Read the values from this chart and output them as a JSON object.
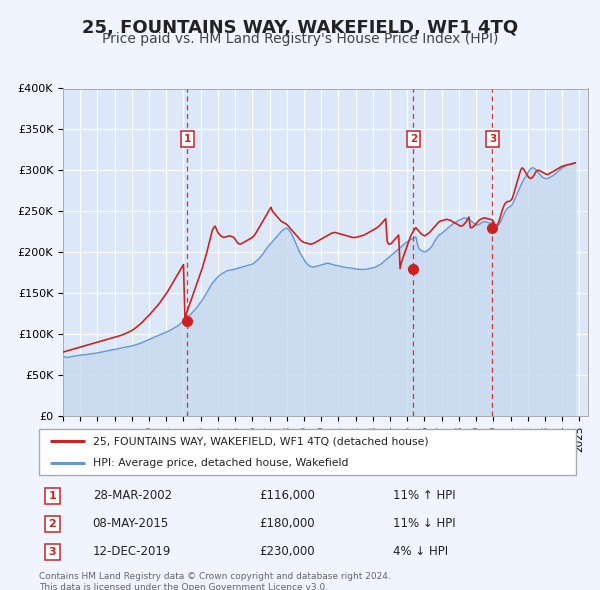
{
  "title": "25, FOUNTAINS WAY, WAKEFIELD, WF1 4TQ",
  "subtitle": "Price paid vs. HM Land Registry's House Price Index (HPI)",
  "ylim": [
    0,
    400000
  ],
  "yticks": [
    0,
    50000,
    100000,
    150000,
    200000,
    250000,
    300000,
    350000,
    400000
  ],
  "ytick_labels": [
    "£0",
    "£50K",
    "£100K",
    "£150K",
    "£200K",
    "£250K",
    "£300K",
    "£350K",
    "£400K"
  ],
  "xlim_start": 1995.0,
  "xlim_end": 2025.5,
  "background_color": "#f0f4ff",
  "plot_bg_color": "#dce8f8",
  "grid_color": "#ffffff",
  "hpi_color": "#6699cc",
  "price_color": "#cc2222",
  "hpi_fill_color": "#c8daf0",
  "sale_marker_color": "#cc2222",
  "vline_color": "#cc2222",
  "title_fontsize": 13,
  "subtitle_fontsize": 10,
  "legend_label_price": "25, FOUNTAINS WAY, WAKEFIELD, WF1 4TQ (detached house)",
  "legend_label_hpi": "HPI: Average price, detached house, Wakefield",
  "transactions": [
    {
      "num": 1,
      "date": "28-MAR-2002",
      "price": 116000,
      "pct": "11%",
      "dir": "↑",
      "x": 2002.23
    },
    {
      "num": 2,
      "date": "08-MAY-2015",
      "price": 180000,
      "pct": "11%",
      "dir": "↓",
      "x": 2015.36
    },
    {
      "num": 3,
      "date": "12-DEC-2019",
      "price": 230000,
      "pct": "4%",
      "dir": "↓",
      "x": 2019.95
    }
  ],
  "footer": "Contains HM Land Registry data © Crown copyright and database right 2024.\nThis data is licensed under the Open Government Licence v3.0.",
  "hpi_data_x": [
    1995.0,
    1995.083,
    1995.167,
    1995.25,
    1995.333,
    1995.417,
    1995.5,
    1995.583,
    1995.667,
    1995.75,
    1995.833,
    1995.917,
    1996.0,
    1996.083,
    1996.167,
    1996.25,
    1996.333,
    1996.417,
    1996.5,
    1996.583,
    1996.667,
    1996.75,
    1996.833,
    1996.917,
    1997.0,
    1997.083,
    1997.167,
    1997.25,
    1997.333,
    1997.417,
    1997.5,
    1997.583,
    1997.667,
    1997.75,
    1997.833,
    1997.917,
    1998.0,
    1998.083,
    1998.167,
    1998.25,
    1998.333,
    1998.417,
    1998.5,
    1998.583,
    1998.667,
    1998.75,
    1998.833,
    1998.917,
    1999.0,
    1999.083,
    1999.167,
    1999.25,
    1999.333,
    1999.417,
    1999.5,
    1999.583,
    1999.667,
    1999.75,
    1999.833,
    1999.917,
    2000.0,
    2000.083,
    2000.167,
    2000.25,
    2000.333,
    2000.417,
    2000.5,
    2000.583,
    2000.667,
    2000.75,
    2000.833,
    2000.917,
    2001.0,
    2001.083,
    2001.167,
    2001.25,
    2001.333,
    2001.417,
    2001.5,
    2001.583,
    2001.667,
    2001.75,
    2001.833,
    2001.917,
    2002.0,
    2002.083,
    2002.167,
    2002.25,
    2002.333,
    2002.417,
    2002.5,
    2002.583,
    2002.667,
    2002.75,
    2002.833,
    2002.917,
    2003.0,
    2003.083,
    2003.167,
    2003.25,
    2003.333,
    2003.417,
    2003.5,
    2003.583,
    2003.667,
    2003.75,
    2003.833,
    2003.917,
    2004.0,
    2004.083,
    2004.167,
    2004.25,
    2004.333,
    2004.417,
    2004.5,
    2004.583,
    2004.667,
    2004.75,
    2004.833,
    2004.917,
    2005.0,
    2005.083,
    2005.167,
    2005.25,
    2005.333,
    2005.417,
    2005.5,
    2005.583,
    2005.667,
    2005.75,
    2005.833,
    2005.917,
    2006.0,
    2006.083,
    2006.167,
    2006.25,
    2006.333,
    2006.417,
    2006.5,
    2006.583,
    2006.667,
    2006.75,
    2006.833,
    2006.917,
    2007.0,
    2007.083,
    2007.167,
    2007.25,
    2007.333,
    2007.417,
    2007.5,
    2007.583,
    2007.667,
    2007.75,
    2007.833,
    2007.917,
    2008.0,
    2008.083,
    2008.167,
    2008.25,
    2008.333,
    2008.417,
    2008.5,
    2008.583,
    2008.667,
    2008.75,
    2008.833,
    2008.917,
    2009.0,
    2009.083,
    2009.167,
    2009.25,
    2009.333,
    2009.417,
    2009.5,
    2009.583,
    2009.667,
    2009.75,
    2009.833,
    2009.917,
    2010.0,
    2010.083,
    2010.167,
    2010.25,
    2010.333,
    2010.417,
    2010.5,
    2010.583,
    2010.667,
    2010.75,
    2010.833,
    2010.917,
    2011.0,
    2011.083,
    2011.167,
    2011.25,
    2011.333,
    2011.417,
    2011.5,
    2011.583,
    2011.667,
    2011.75,
    2011.833,
    2011.917,
    2012.0,
    2012.083,
    2012.167,
    2012.25,
    2012.333,
    2012.417,
    2012.5,
    2012.583,
    2012.667,
    2012.75,
    2012.833,
    2012.917,
    2013.0,
    2013.083,
    2013.167,
    2013.25,
    2013.333,
    2013.417,
    2013.5,
    2013.583,
    2013.667,
    2013.75,
    2013.833,
    2013.917,
    2014.0,
    2014.083,
    2014.167,
    2014.25,
    2014.333,
    2014.417,
    2014.5,
    2014.583,
    2014.667,
    2014.75,
    2014.833,
    2014.917,
    2015.0,
    2015.083,
    2015.167,
    2015.25,
    2015.333,
    2015.417,
    2015.5,
    2015.583,
    2015.667,
    2015.75,
    2015.833,
    2015.917,
    2016.0,
    2016.083,
    2016.167,
    2016.25,
    2016.333,
    2016.417,
    2016.5,
    2016.583,
    2016.667,
    2016.75,
    2016.833,
    2016.917,
    2017.0,
    2017.083,
    2017.167,
    2017.25,
    2017.333,
    2017.417,
    2017.5,
    2017.583,
    2017.667,
    2017.75,
    2017.833,
    2017.917,
    2018.0,
    2018.083,
    2018.167,
    2018.25,
    2018.333,
    2018.417,
    2018.5,
    2018.583,
    2018.667,
    2018.75,
    2018.833,
    2018.917,
    2019.0,
    2019.083,
    2019.167,
    2019.25,
    2019.333,
    2019.417,
    2019.5,
    2019.583,
    2019.667,
    2019.75,
    2019.833,
    2019.917,
    2020.0,
    2020.083,
    2020.167,
    2020.25,
    2020.333,
    2020.417,
    2020.5,
    2020.583,
    2020.667,
    2020.75,
    2020.833,
    2020.917,
    2021.0,
    2021.083,
    2021.167,
    2021.25,
    2021.333,
    2021.417,
    2021.5,
    2021.583,
    2021.667,
    2021.75,
    2021.833,
    2021.917,
    2022.0,
    2022.083,
    2022.167,
    2022.25,
    2022.333,
    2022.417,
    2022.5,
    2022.583,
    2022.667,
    2022.75,
    2022.833,
    2022.917,
    2023.0,
    2023.083,
    2023.167,
    2023.25,
    2023.333,
    2023.417,
    2023.5,
    2023.583,
    2023.667,
    2023.75,
    2023.833,
    2023.917,
    2024.0,
    2024.083,
    2024.167,
    2024.25,
    2024.333,
    2024.417,
    2024.5,
    2024.583,
    2024.667,
    2024.75
  ],
  "hpi_data_y": [
    72000,
    72200,
    71800,
    71500,
    71800,
    72200,
    72500,
    72800,
    73200,
    73500,
    73700,
    74000,
    74200,
    74500,
    74700,
    74800,
    75000,
    75300,
    75500,
    75800,
    76000,
    76300,
    76500,
    76800,
    77000,
    77300,
    77700,
    78000,
    78400,
    78800,
    79200,
    79600,
    80000,
    80300,
    80600,
    80900,
    81200,
    81600,
    82000,
    82400,
    82800,
    83200,
    83500,
    83800,
    84200,
    84500,
    84800,
    85200,
    85500,
    86000,
    86500,
    87000,
    87600,
    88200,
    88800,
    89500,
    90200,
    91000,
    91800,
    92600,
    93500,
    94300,
    95000,
    95800,
    96500,
    97200,
    98000,
    98800,
    99600,
    100300,
    101000,
    101800,
    102500,
    103200,
    104000,
    105000,
    106000,
    107000,
    108000,
    109000,
    110000,
    111500,
    113000,
    114500,
    116000,
    117500,
    119000,
    120500,
    122000,
    124000,
    126000,
    128000,
    130000,
    132000,
    134000,
    136500,
    139000,
    141500,
    144000,
    147000,
    150000,
    153000,
    156000,
    159000,
    162000,
    164000,
    166000,
    168000,
    170000,
    171500,
    173000,
    174000,
    175000,
    176000,
    177000,
    177500,
    178000,
    178200,
    178500,
    179000,
    179500,
    180000,
    180500,
    181000,
    181500,
    182000,
    182500,
    183000,
    183500,
    184000,
    184500,
    185000,
    185500,
    186500,
    188000,
    189500,
    191000,
    193000,
    195000,
    197000,
    199500,
    202000,
    204500,
    207000,
    209000,
    211000,
    213000,
    215000,
    217000,
    219000,
    221000,
    223000,
    225000,
    226500,
    228000,
    229000,
    229500,
    228000,
    226000,
    223000,
    220000,
    216000,
    212000,
    208000,
    204000,
    200000,
    197000,
    194000,
    191000,
    188500,
    186000,
    184500,
    183000,
    182500,
    182000,
    182000,
    182500,
    183000,
    183500,
    184000,
    184500,
    185000,
    185500,
    186000,
    186500,
    186500,
    186000,
    185500,
    185000,
    184500,
    184000,
    183800,
    183500,
    183000,
    182500,
    182000,
    181800,
    181500,
    181000,
    181000,
    180800,
    180500,
    180200,
    180000,
    179800,
    179500,
    179200,
    179000,
    179000,
    179000,
    179000,
    179200,
    179500,
    179800,
    180000,
    180500,
    181000,
    181500,
    182000,
    183000,
    184000,
    185000,
    186000,
    187500,
    189000,
    190500,
    192000,
    193500,
    195000,
    196500,
    198000,
    199500,
    201000,
    202500,
    204000,
    205500,
    207000,
    208500,
    210000,
    211500,
    213000,
    214000,
    215000,
    216000,
    217000,
    218000,
    219000,
    210000,
    205000,
    203000,
    202000,
    201000,
    200500,
    201000,
    202000,
    203500,
    205000,
    207000,
    210000,
    213000,
    216000,
    218500,
    220500,
    222000,
    223000,
    224500,
    226000,
    227500,
    229000,
    230500,
    232000,
    233500,
    235000,
    236000,
    237000,
    238000,
    239000,
    240000,
    241000,
    241500,
    242000,
    241500,
    241000,
    240000,
    239000,
    237500,
    236000,
    234500,
    233000,
    233500,
    234000,
    235000,
    236000,
    237000,
    237500,
    237000,
    236500,
    236000,
    235800,
    235500,
    235000,
    233000,
    232000,
    232500,
    234000,
    237000,
    241000,
    245000,
    249000,
    252000,
    254000,
    255000,
    256000,
    258000,
    261000,
    265000,
    269000,
    273000,
    277000,
    281000,
    285000,
    288000,
    291000,
    294000,
    297000,
    300000,
    302000,
    303000,
    303000,
    302000,
    300000,
    298000,
    296000,
    294000,
    292000,
    291000,
    290000,
    290000,
    290500,
    291000,
    292000,
    293000,
    294000,
    295500,
    297000,
    298500,
    300000,
    301500,
    303000,
    304000,
    305000,
    306000,
    307000,
    307500,
    308000,
    308500,
    309000,
    309500
  ],
  "price_data_x": [
    1995.0,
    1995.083,
    1995.167,
    1995.25,
    1995.333,
    1995.417,
    1995.5,
    1995.583,
    1995.667,
    1995.75,
    1995.833,
    1995.917,
    1996.0,
    1996.083,
    1996.167,
    1996.25,
    1996.333,
    1996.417,
    1996.5,
    1996.583,
    1996.667,
    1996.75,
    1996.833,
    1996.917,
    1997.0,
    1997.083,
    1997.167,
    1997.25,
    1997.333,
    1997.417,
    1997.5,
    1997.583,
    1997.667,
    1997.75,
    1997.833,
    1997.917,
    1998.0,
    1998.083,
    1998.167,
    1998.25,
    1998.333,
    1998.417,
    1998.5,
    1998.583,
    1998.667,
    1998.75,
    1998.833,
    1998.917,
    1999.0,
    1999.083,
    1999.167,
    1999.25,
    1999.333,
    1999.417,
    1999.5,
    1999.583,
    1999.667,
    1999.75,
    1999.833,
    1999.917,
    2000.0,
    2000.083,
    2000.167,
    2000.25,
    2000.333,
    2000.417,
    2000.5,
    2000.583,
    2000.667,
    2000.75,
    2000.833,
    2000.917,
    2001.0,
    2001.083,
    2001.167,
    2001.25,
    2001.333,
    2001.417,
    2001.5,
    2001.583,
    2001.667,
    2001.75,
    2001.833,
    2001.917,
    2002.0,
    2002.083,
    2002.167,
    2002.25,
    2002.333,
    2002.417,
    2002.5,
    2002.583,
    2002.667,
    2002.75,
    2002.833,
    2002.917,
    2003.0,
    2003.083,
    2003.167,
    2003.25,
    2003.333,
    2003.417,
    2003.5,
    2003.583,
    2003.667,
    2003.75,
    2003.833,
    2003.917,
    2004.0,
    2004.083,
    2004.167,
    2004.25,
    2004.333,
    2004.417,
    2004.5,
    2004.583,
    2004.667,
    2004.75,
    2004.833,
    2004.917,
    2005.0,
    2005.083,
    2005.167,
    2005.25,
    2005.333,
    2005.417,
    2005.5,
    2005.583,
    2005.667,
    2005.75,
    2005.833,
    2005.917,
    2006.0,
    2006.083,
    2006.167,
    2006.25,
    2006.333,
    2006.417,
    2006.5,
    2006.583,
    2006.667,
    2006.75,
    2006.833,
    2006.917,
    2007.0,
    2007.083,
    2007.167,
    2007.25,
    2007.333,
    2007.417,
    2007.5,
    2007.583,
    2007.667,
    2007.75,
    2007.833,
    2007.917,
    2008.0,
    2008.083,
    2008.167,
    2008.25,
    2008.333,
    2008.417,
    2008.5,
    2008.583,
    2008.667,
    2008.75,
    2008.833,
    2008.917,
    2009.0,
    2009.083,
    2009.167,
    2009.25,
    2009.333,
    2009.417,
    2009.5,
    2009.583,
    2009.667,
    2009.75,
    2009.833,
    2009.917,
    2010.0,
    2010.083,
    2010.167,
    2010.25,
    2010.333,
    2010.417,
    2010.5,
    2010.583,
    2010.667,
    2010.75,
    2010.833,
    2010.917,
    2011.0,
    2011.083,
    2011.167,
    2011.25,
    2011.333,
    2011.417,
    2011.5,
    2011.583,
    2011.667,
    2011.75,
    2011.833,
    2011.917,
    2012.0,
    2012.083,
    2012.167,
    2012.25,
    2012.333,
    2012.417,
    2012.5,
    2012.583,
    2012.667,
    2012.75,
    2012.833,
    2012.917,
    2013.0,
    2013.083,
    2013.167,
    2013.25,
    2013.333,
    2013.417,
    2013.5,
    2013.583,
    2013.667,
    2013.75,
    2013.833,
    2013.917,
    2014.0,
    2014.083,
    2014.167,
    2014.25,
    2014.333,
    2014.417,
    2014.5,
    2014.583,
    2014.667,
    2014.75,
    2014.833,
    2014.917,
    2015.0,
    2015.083,
    2015.167,
    2015.25,
    2015.333,
    2015.417,
    2015.5,
    2015.583,
    2015.667,
    2015.75,
    2015.833,
    2015.917,
    2016.0,
    2016.083,
    2016.167,
    2016.25,
    2016.333,
    2016.417,
    2016.5,
    2016.583,
    2016.667,
    2016.75,
    2016.833,
    2016.917,
    2017.0,
    2017.083,
    2017.167,
    2017.25,
    2017.333,
    2017.417,
    2017.5,
    2017.583,
    2017.667,
    2017.75,
    2017.833,
    2017.917,
    2018.0,
    2018.083,
    2018.167,
    2018.25,
    2018.333,
    2018.417,
    2018.5,
    2018.583,
    2018.667,
    2018.75,
    2018.833,
    2018.917,
    2019.0,
    2019.083,
    2019.167,
    2019.25,
    2019.333,
    2019.417,
    2019.5,
    2019.583,
    2019.667,
    2019.75,
    2019.833,
    2019.917,
    2020.0,
    2020.083,
    2020.167,
    2020.25,
    2020.333,
    2020.417,
    2020.5,
    2020.583,
    2020.667,
    2020.75,
    2020.833,
    2020.917,
    2021.0,
    2021.083,
    2021.167,
    2021.25,
    2021.333,
    2021.417,
    2021.5,
    2021.583,
    2021.667,
    2021.75,
    2021.833,
    2021.917,
    2022.0,
    2022.083,
    2022.167,
    2022.25,
    2022.333,
    2022.417,
    2022.5,
    2022.583,
    2022.667,
    2022.75,
    2022.833,
    2022.917,
    2023.0,
    2023.083,
    2023.167,
    2023.25,
    2023.333,
    2023.417,
    2023.5,
    2023.583,
    2023.667,
    2023.75,
    2023.833,
    2023.917,
    2024.0,
    2024.083,
    2024.167,
    2024.25,
    2024.333,
    2024.417,
    2024.5,
    2024.583,
    2024.667,
    2024.75
  ],
  "price_data_y": [
    78000,
    78500,
    79000,
    79500,
    80000,
    80500,
    81000,
    81500,
    82000,
    82500,
    83000,
    83500,
    84000,
    84500,
    85000,
    85500,
    86000,
    86500,
    87000,
    87500,
    88000,
    88500,
    89000,
    89500,
    90000,
    90500,
    91000,
    91500,
    92000,
    92500,
    93000,
    93500,
    94000,
    94500,
    95000,
    95500,
    96000,
    96500,
    97000,
    97600,
    98200,
    98800,
    99500,
    100200,
    101000,
    101800,
    102600,
    103500,
    104500,
    105500,
    106800,
    108000,
    109500,
    111000,
    112500,
    114000,
    116000,
    117800,
    119600,
    121500,
    123000,
    125000,
    127000,
    129000,
    131000,
    133000,
    135000,
    137000,
    139500,
    142000,
    144500,
    147000,
    149500,
    152000,
    155000,
    158000,
    161000,
    164000,
    167000,
    170000,
    173000,
    176000,
    179000,
    182000,
    185000,
    116000,
    125000,
    130000,
    135000,
    140000,
    145000,
    150000,
    155000,
    160000,
    165000,
    170000,
    175000,
    180000,
    186000,
    192000,
    198000,
    205000,
    212000,
    219000,
    226000,
    230000,
    232000,
    228000,
    224000,
    222000,
    220000,
    219000,
    218000,
    218500,
    219000,
    219500,
    220000,
    219500,
    219000,
    218000,
    216000,
    213000,
    211000,
    210000,
    210000,
    211000,
    212000,
    213000,
    214000,
    215000,
    216000,
    217000,
    218000,
    220000,
    222000,
    225000,
    228000,
    231000,
    234000,
    237000,
    240000,
    243000,
    246000,
    249000,
    252000,
    255000,
    250000,
    248000,
    246000,
    244000,
    242000,
    240000,
    238000,
    237000,
    236000,
    235000,
    234000,
    232000,
    230000,
    228000,
    226000,
    224000,
    222000,
    220000,
    218000,
    216000,
    214000,
    213000,
    212000,
    211500,
    211000,
    210500,
    210000,
    210000,
    210500,
    211000,
    212000,
    213000,
    214000,
    215000,
    216000,
    217000,
    218000,
    219000,
    220000,
    221000,
    222000,
    223000,
    223500,
    224000,
    224000,
    223500,
    223000,
    222500,
    222000,
    221500,
    221000,
    220500,
    220000,
    219500,
    219000,
    218500,
    218000,
    218000,
    218000,
    218500,
    219000,
    219500,
    220000,
    220500,
    221000,
    222000,
    223000,
    224000,
    225000,
    226000,
    227000,
    228000,
    229000,
    230000,
    231500,
    233000,
    235000,
    237000,
    239000,
    241000,
    213000,
    210000,
    210000,
    211000,
    213000,
    215000,
    217000,
    219000,
    221000,
    180000,
    188000,
    193000,
    198000,
    203000,
    208000,
    213000,
    218000,
    222000,
    225000,
    228000,
    230000,
    228000,
    226000,
    224000,
    222000,
    221000,
    220000,
    221000,
    222000,
    223500,
    225000,
    227000,
    229000,
    231000,
    233000,
    235000,
    237000,
    238000,
    238500,
    239000,
    239500,
    240000,
    240000,
    239500,
    239000,
    238000,
    237000,
    236000,
    235000,
    234000,
    233000,
    232000,
    232000,
    233000,
    235000,
    237000,
    240000,
    243000,
    230000,
    230000,
    231000,
    233000,
    235000,
    237000,
    239000,
    240000,
    241000,
    241500,
    242000,
    241500,
    241000,
    240500,
    240000,
    239500,
    238000,
    233000,
    232000,
    234000,
    238000,
    244000,
    250000,
    255000,
    259000,
    261000,
    262000,
    262000,
    263000,
    265000,
    270000,
    276000,
    282000,
    288000,
    294000,
    300000,
    303000,
    302000,
    299000,
    296000,
    293000,
    291000,
    290000,
    291000,
    293000,
    296000,
    299000,
    300000,
    300000,
    299000,
    298000,
    297000,
    296000,
    295000,
    295000,
    296000,
    297000,
    298000,
    299000,
    300000,
    301000,
    302000,
    303000,
    304000,
    305000,
    305500,
    306000,
    306500,
    307000,
    307000,
    307500,
    308000,
    308500,
    309000
  ]
}
